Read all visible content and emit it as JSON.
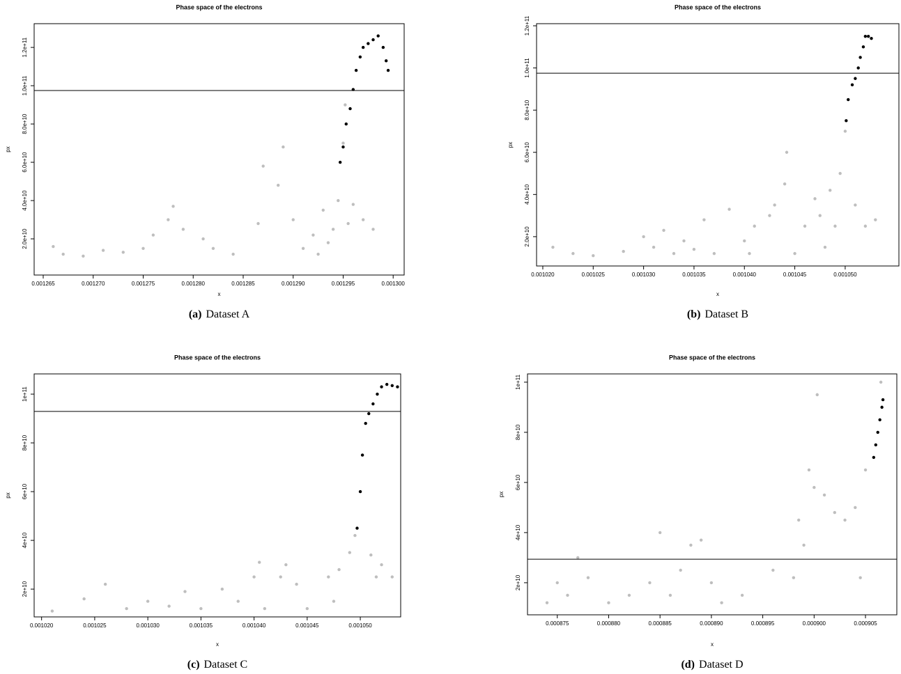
{
  "chart_data": [
    {
      "type": "scatter",
      "title": "Phase space of the electrons",
      "xlabel": "x",
      "ylabel": "px",
      "caption_label": "(a)",
      "caption": "Dataset A",
      "xlim": [
        0.001264093,
        0.0013011
      ],
      "ylim": [
        1100000000.0,
        132400000000.0
      ],
      "xticks": [
        0.001265,
        {
          "value": 0.00127,
          "label": "0.001270"
        },
        0.001275,
        {
          "value": 0.00128,
          "label": "0.001280"
        },
        0.001285,
        {
          "value": 0.00129,
          "label": "0.001290"
        },
        0.001295,
        {
          "value": 0.0013,
          "label": "0.001300"
        }
      ],
      "yticks": [
        {
          "value": 20000000000.0,
          "label": "2.0e+10"
        },
        {
          "value": 40000000000.0,
          "label": "4.0e+10"
        },
        {
          "value": 60000000000.0,
          "label": "6.0e+10"
        },
        {
          "value": 80000000000.0,
          "label": "8.0e+10"
        },
        {
          "value": 100000000000.0,
          "label": "1.0e+11"
        },
        {
          "value": 120000000000.0,
          "label": "1.2e+11"
        }
      ],
      "hline": 97500000000.0,
      "series": [
        {
          "color": "#bebebe",
          "x": [
            0.001266,
            0.001267,
            0.001269,
            0.001271,
            0.001273,
            0.001275,
            0.001276,
            0.0012775,
            0.001278,
            0.001279,
            0.001281,
            0.001282,
            0.001284,
            0.0012865,
            0.001287,
            0.0012885,
            0.001289,
            0.00129,
            0.001291,
            0.001292,
            0.0012925,
            0.001293,
            0.0012935,
            0.001294,
            0.0012945,
            0.0012955,
            0.001296,
            0.001297,
            0.001298,
            0.001295,
            0.0012952
          ],
          "values": [
            16000000000.0,
            12000000000.0,
            11000000000.0,
            14000000000.0,
            13000000000.0,
            15000000000.0,
            22000000000.0,
            30000000000.0,
            37000000000.0,
            25000000000.0,
            20000000000.0,
            15000000000.0,
            12000000000.0,
            28000000000.0,
            58000000000.0,
            48000000000.0,
            68000000000.0,
            30000000000.0,
            15000000000.0,
            22000000000.0,
            12000000000.0,
            35000000000.0,
            18000000000.0,
            25000000000.0,
            40000000000.0,
            28000000000.0,
            38000000000.0,
            30000000000.0,
            25000000000.0,
            70000000000.0,
            90000000000.0
          ]
        },
        {
          "color": "#000000",
          "x": [
            0.0012947,
            0.001295,
            0.0012953,
            0.0012957,
            0.001296,
            0.0012963,
            0.0012967,
            0.001297,
            0.0012975,
            0.001298,
            0.0012985,
            0.001299,
            0.0012993,
            0.0012995
          ],
          "values": [
            60000000000.0,
            68000000000.0,
            80000000000.0,
            88000000000.0,
            98000000000.0,
            108000000000.0,
            115000000000.0,
            120000000000.0,
            122000000000.0,
            124000000000.0,
            126000000000.0,
            120000000000.0,
            113000000000.0,
            108000000000.0
          ]
        }
      ]
    },
    {
      "type": "scatter",
      "title": "Phase space of the electrons",
      "xlabel": "x",
      "ylabel": "px",
      "caption_label": "(b)",
      "caption": "Dataset B",
      "xlim": [
        0.00101938,
        0.00105533
      ],
      "ylim": [
        6100000000.0,
        121000000000.0
      ],
      "xticks": [
        {
          "value": 0.00102,
          "label": "0.001020"
        },
        0.001025,
        {
          "value": 0.00103,
          "label": "0.001030"
        },
        0.001035,
        {
          "value": 0.00104,
          "label": "0.001040"
        },
        0.001045,
        {
          "value": 0.00105,
          "label": "0.001050"
        }
      ],
      "yticks": [
        {
          "value": 20000000000.0,
          "label": "2.0e+10"
        },
        {
          "value": 40000000000.0,
          "label": "4.0e+10"
        },
        {
          "value": 60000000000.0,
          "label": "6.0e+10"
        },
        {
          "value": 80000000000.0,
          "label": "8.0e+10"
        },
        {
          "value": 100000000000.0,
          "label": "1.0e+11"
        },
        {
          "value": 120000000000.0,
          "label": "1.2e+11"
        }
      ],
      "hline": 97500000000.0,
      "series": [
        {
          "color": "#bebebe",
          "x": [
            0.001021,
            0.001023,
            0.001025,
            0.001028,
            0.00103,
            0.001031,
            0.001032,
            0.001033,
            0.001034,
            0.001035,
            0.001036,
            0.001037,
            0.0010385,
            0.00104,
            0.0010405,
            0.001041,
            0.0010425,
            0.001043,
            0.001044,
            0.0010442,
            0.001045,
            0.001046,
            0.001047,
            0.0010475,
            0.001048,
            0.0010485,
            0.001049,
            0.0010495,
            0.00105,
            0.001051,
            0.001052,
            0.001053
          ],
          "values": [
            15000000000.0,
            12000000000.0,
            11000000000.0,
            13000000000.0,
            20000000000.0,
            15000000000.0,
            23000000000.0,
            12000000000.0,
            18000000000.0,
            14000000000.0,
            28000000000.0,
            12000000000.0,
            33000000000.0,
            18000000000.0,
            12000000000.0,
            25000000000.0,
            30000000000.0,
            35000000000.0,
            45000000000.0,
            60000000000.0,
            12000000000.0,
            25000000000.0,
            38000000000.0,
            30000000000.0,
            15000000000.0,
            42000000000.0,
            25000000000.0,
            50000000000.0,
            70000000000.0,
            35000000000.0,
            25000000000.0,
            28000000000.0
          ]
        },
        {
          "color": "#000000",
          "x": [
            0.0010501,
            0.0010503,
            0.0010507,
            0.001051,
            0.0010513,
            0.0010515,
            0.0010518,
            0.001052,
            0.0010523,
            0.0010526
          ],
          "values": [
            75000000000.0,
            85000000000.0,
            92000000000.0,
            95000000000.0,
            100000000000.0,
            105000000000.0,
            110000000000.0,
            115000000000.0,
            115000000000.0,
            114000000000.0
          ]
        }
      ]
    },
    {
      "type": "scatter",
      "title": "Phase space of the electrons",
      "xlabel": "x",
      "ylabel": "px",
      "caption_label": "(c)",
      "caption": "Dataset C",
      "xlim": [
        0.0010193,
        0.0010538
      ],
      "ylim": [
        8600000000.0,
        108300000000.0
      ],
      "xticks": [
        {
          "value": 0.00102,
          "label": "0.001020"
        },
        0.001025,
        {
          "value": 0.00103,
          "label": "0.001030"
        },
        0.001035,
        {
          "value": 0.00104,
          "label": "0.001040"
        },
        0.001045,
        {
          "value": 0.00105,
          "label": "0.001050"
        }
      ],
      "yticks": [
        {
          "value": 20000000000.0,
          "label": "2e+10"
        },
        {
          "value": 40000000000.0,
          "label": "4e+10"
        },
        {
          "value": 60000000000.0,
          "label": "6e+10"
        },
        {
          "value": 80000000000.0,
          "label": "8e+10"
        },
        {
          "value": 100000000000.0,
          "label": "1e+11"
        }
      ],
      "hline": 92900000000.0,
      "series": [
        {
          "color": "#bebebe",
          "x": [
            0.001021,
            0.001024,
            0.001026,
            0.001028,
            0.00103,
            0.001032,
            0.0010335,
            0.001035,
            0.001037,
            0.0010385,
            0.00104,
            0.0010405,
            0.001041,
            0.0010425,
            0.001043,
            0.001044,
            0.001045,
            0.001047,
            0.0010475,
            0.001048,
            0.001049,
            0.0010495,
            0.001051,
            0.0010515,
            0.001052,
            0.001053
          ],
          "values": [
            11000000000.0,
            16000000000.0,
            22000000000.0,
            12000000000.0,
            15000000000.0,
            13000000000.0,
            19000000000.0,
            12000000000.0,
            20000000000.0,
            15000000000.0,
            25000000000.0,
            31000000000.0,
            12000000000.0,
            25000000000.0,
            30000000000.0,
            22000000000.0,
            12000000000.0,
            25000000000.0,
            15000000000.0,
            28000000000.0,
            35000000000.0,
            42000000000.0,
            34000000000.0,
            25000000000.0,
            30000000000.0,
            25000000000.0
          ]
        },
        {
          "color": "#000000",
          "x": [
            0.0010497,
            0.00105,
            0.0010502,
            0.0010505,
            0.0010508,
            0.0010512,
            0.0010516,
            0.001052,
            0.0010525,
            0.001053,
            0.0010535
          ],
          "values": [
            45000000000.0,
            60000000000.0,
            75000000000.0,
            88000000000.0,
            92000000000.0,
            96000000000.0,
            100000000000.0,
            103000000000.0,
            104000000000.0,
            103500000000.0,
            103000000000.0
          ]
        }
      ]
    },
    {
      "type": "scatter",
      "title": "Phase space of the electrons",
      "xlabel": "x",
      "ylabel": "px",
      "caption_label": "(d)",
      "caption": "Dataset D",
      "xlim": [
        0.0008721,
        0.00090805
      ],
      "ylim": [
        7200000000.0,
        103300000000.0
      ],
      "xticks": [
        0.000875,
        {
          "value": 0.00088,
          "label": "0.000880"
        },
        0.000885,
        {
          "value": 0.00089,
          "label": "0.000890"
        },
        0.000895,
        {
          "value": 0.0009,
          "label": "0.000900"
        },
        0.000905
      ],
      "yticks": [
        {
          "value": 20000000000.0,
          "label": "2e+10"
        },
        {
          "value": 40000000000.0,
          "label": "4e+10"
        },
        {
          "value": 60000000000.0,
          "label": "6e+10"
        },
        {
          "value": 80000000000.0,
          "label": "8e+10"
        },
        {
          "value": 100000000000.0,
          "label": "1e+11"
        }
      ],
      "hline": 29400000000.0,
      "series": [
        {
          "color": "#bebebe",
          "x": [
            0.000874,
            0.000875,
            0.000876,
            0.000877,
            0.000878,
            0.00088,
            0.000882,
            0.000884,
            0.000885,
            0.000886,
            0.000887,
            0.000888,
            0.000889,
            0.00089,
            0.000891,
            0.000893,
            0.000896,
            0.000898,
            0.0008985,
            0.000899,
            0.0008995,
            0.0009,
            0.0009003,
            0.000901,
            0.000902,
            0.000903,
            0.000904,
            0.0009045,
            0.000905,
            0.0009065
          ],
          "values": [
            12000000000.0,
            20000000000.0,
            15000000000.0,
            30000000000.0,
            22000000000.0,
            12000000000.0,
            15000000000.0,
            20000000000.0,
            40000000000.0,
            15000000000.0,
            25000000000.0,
            35000000000.0,
            37000000000.0,
            20000000000.0,
            12000000000.0,
            15000000000.0,
            25000000000.0,
            22000000000.0,
            45000000000.0,
            35000000000.0,
            65000000000.0,
            58000000000.0,
            95000000000.0,
            55000000000.0,
            48000000000.0,
            45000000000.0,
            50000000000.0,
            22000000000.0,
            65000000000.0,
            100000000000.0
          ]
        },
        {
          "color": "#000000",
          "x": [
            0.0009058,
            0.000906,
            0.0009062,
            0.0009064,
            0.0009066,
            0.0009067
          ],
          "values": [
            70000000000.0,
            75000000000.0,
            80000000000.0,
            85000000000.0,
            90000000000.0,
            93000000000.0
          ]
        }
      ]
    }
  ]
}
